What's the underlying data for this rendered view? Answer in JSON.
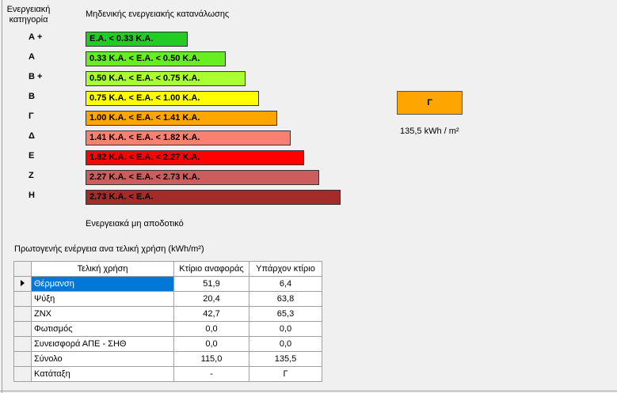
{
  "header": {
    "category_title": "Ενεργειακή κατηγορία",
    "top_label": "Μηδενικής ενεργειακής κατανάλωσης",
    "bottom_label": "Ενεργειακά μη αποδοτικό"
  },
  "categories": [
    {
      "label": "Α +",
      "range": "Ε.Α. < 0.33 Κ.Α.",
      "color": "#22cc22"
    },
    {
      "label": "Α",
      "range": "0.33 Κ.Α. <  Ε.Α. < 0.50 Κ.Α.",
      "color": "#66ee22"
    },
    {
      "label": "Β +",
      "range": "0.50 Κ.Α. <  Ε.Α. < 0.75 Κ.Α.",
      "color": "#aaff33"
    },
    {
      "label": "Β",
      "range": "0.75 Κ.Α. <  Ε.Α. < 1.00 Κ.Α.",
      "color": "#ffff00"
    },
    {
      "label": "Γ",
      "range": "1.00 Κ.Α. <  Ε.Α. < 1.41 Κ.Α.",
      "color": "#ffa500"
    },
    {
      "label": "Δ",
      "range": "1.41 Κ.Α. <  Ε.Α. < 1.82 Κ.Α.",
      "color": "#fa8072"
    },
    {
      "label": "Ε",
      "range": "1.82 Κ.Α. <  Ε.Α. < 2.27 Κ.Α.",
      "color": "#ff0000"
    },
    {
      "label": "Ζ",
      "range": "2.27 Κ.Α. <  Ε.Α. < 2.73 Κ.Α.",
      "color": "#cd5c5c"
    },
    {
      "label": "Η",
      "range": "2.73 Κ.Α. <  Ε.Α.",
      "color": "#a52a2a"
    }
  ],
  "rating": {
    "label": "Γ",
    "color": "#ffa500",
    "value": "135,5 kWh / m²"
  },
  "table": {
    "title": "Πρωτογενής ενέργεια ανα τελική χρήση (kWh/m²)",
    "headers": [
      "Τελική χρήση",
      "Κτίριο αναφοράς",
      "Υπάρχον κτίριο"
    ],
    "rows": [
      [
        "Θέρμανση",
        "51,9",
        "6,4"
      ],
      [
        "Ψύξη",
        "20,4",
        "63,8"
      ],
      [
        "ΖΝΧ",
        "42,7",
        "65,3"
      ],
      [
        "Φωτισμός",
        "0,0",
        "0,0"
      ],
      [
        "Συνεισφορά ΑΠΕ - ΣΗΘ",
        "0,0",
        "0,0"
      ],
      [
        "Σύνολο",
        "115,0",
        "135,5"
      ],
      [
        "Κατάταξη",
        "-",
        "Γ"
      ]
    ]
  }
}
